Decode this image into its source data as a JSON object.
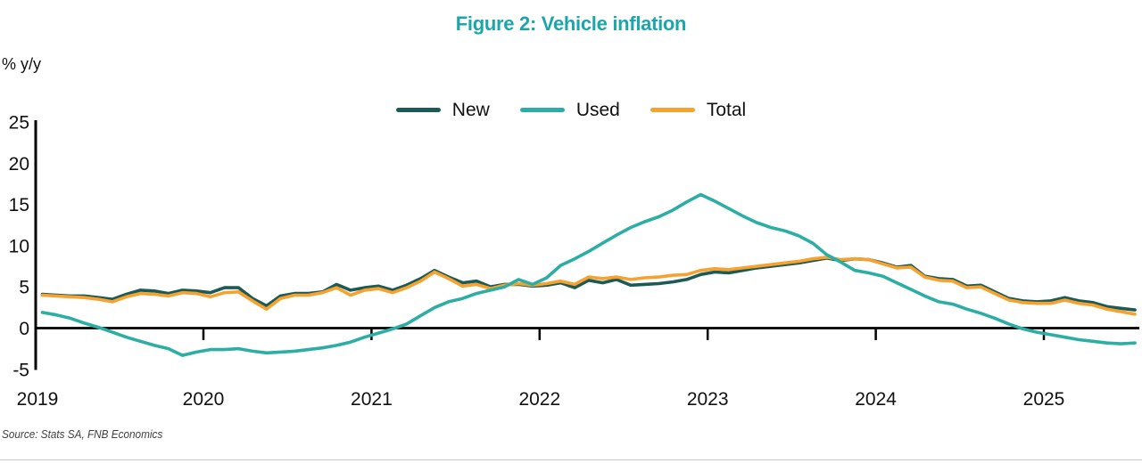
{
  "title": "Figure 2: Vehicle inflation",
  "y_axis_unit_label": "% y/y",
  "source_note": "Source: Stats SA, FNB Economics",
  "colors": {
    "title_teal": "#1ca6ab",
    "new_line": "#1c5b55",
    "used_line": "#2caea5",
    "total_line": "#f7a12f",
    "axis": "#000000",
    "tick_text": "#111111"
  },
  "legend": {
    "items": [
      {
        "label": "New",
        "color": "#1c5b55"
      },
      {
        "label": "Used",
        "color": "#2caea5"
      },
      {
        "label": "Total",
        "color": "#f7a12f"
      }
    ]
  },
  "chart_data": {
    "type": "line",
    "title": "Figure 2: Vehicle inflation",
    "xlabel": "",
    "ylabel": "% y/y",
    "ylim": [
      -5,
      25
    ],
    "yticks": [
      25,
      20,
      15,
      10,
      5,
      0,
      -5
    ],
    "year_tick_labels": [
      "2019",
      "2020",
      "2021",
      "2022",
      "2023",
      "2024",
      "2025"
    ],
    "x_monthly_start": "2019-01",
    "x_monthly_end": "2025-07",
    "grid": false,
    "legend_position": "top-center",
    "zero_baseline": true,
    "draw_order": [
      "New",
      "Total",
      "Used"
    ],
    "series": [
      {
        "name": "New",
        "color": "#1c5b55",
        "values": [
          4.1,
          4.0,
          3.9,
          3.9,
          3.7,
          3.5,
          4.1,
          4.6,
          4.5,
          4.2,
          4.6,
          4.5,
          4.3,
          4.9,
          4.9,
          3.6,
          2.7,
          3.9,
          4.2,
          4.2,
          4.4,
          5.3,
          4.6,
          4.9,
          5.1,
          4.6,
          5.2,
          6.0,
          7.0,
          6.2,
          5.5,
          5.7,
          5.0,
          5.3,
          5.3,
          5.1,
          5.2,
          5.5,
          4.9,
          5.8,
          5.5,
          5.9,
          5.2,
          5.3,
          5.4,
          5.6,
          5.9,
          6.5,
          6.8,
          6.7,
          7.0,
          7.3,
          7.5,
          7.7,
          7.9,
          8.2,
          8.5,
          8.2,
          8.4,
          8.3,
          7.9,
          7.4,
          7.6,
          6.3,
          6.0,
          5.9,
          5.1,
          5.2,
          4.4,
          3.6,
          3.3,
          3.2,
          3.3,
          3.7,
          3.3,
          3.1,
          2.6,
          2.4,
          2.2
        ]
      },
      {
        "name": "Used",
        "color": "#2caea5",
        "values": [
          1.9,
          1.6,
          1.2,
          0.6,
          0.1,
          -0.5,
          -1.1,
          -1.6,
          -2.1,
          -2.5,
          -3.3,
          -2.9,
          -2.6,
          -2.6,
          -2.5,
          -2.8,
          -3.0,
          -2.9,
          -2.8,
          -2.6,
          -2.4,
          -2.1,
          -1.7,
          -1.1,
          -0.6,
          -0.1,
          0.5,
          1.5,
          2.5,
          3.2,
          3.6,
          4.2,
          4.6,
          5.0,
          5.9,
          5.3,
          6.1,
          7.6,
          8.4,
          9.3,
          10.3,
          11.3,
          12.2,
          12.9,
          13.5,
          14.3,
          15.3,
          16.2,
          15.4,
          14.5,
          13.6,
          12.8,
          12.2,
          11.8,
          11.2,
          10.3,
          8.9,
          8.0,
          7.0,
          6.7,
          6.3,
          5.5,
          4.7,
          3.9,
          3.2,
          2.9,
          2.3,
          1.8,
          1.2,
          0.5,
          -0.1,
          -0.5,
          -0.8,
          -1.1,
          -1.4,
          -1.6,
          -1.8,
          -1.9,
          -1.8
        ]
      },
      {
        "name": "Total",
        "color": "#f7a12f",
        "values": [
          4.0,
          3.9,
          3.8,
          3.7,
          3.5,
          3.2,
          3.8,
          4.2,
          4.1,
          3.9,
          4.3,
          4.2,
          3.8,
          4.3,
          4.4,
          3.3,
          2.3,
          3.6,
          4.0,
          4.0,
          4.3,
          4.9,
          4.0,
          4.6,
          4.8,
          4.3,
          4.9,
          5.7,
          6.8,
          6.0,
          5.1,
          5.3,
          4.8,
          5.2,
          5.4,
          5.2,
          5.4,
          5.7,
          5.3,
          6.2,
          6.0,
          6.2,
          5.9,
          6.1,
          6.2,
          6.4,
          6.5,
          7.0,
          7.2,
          7.1,
          7.3,
          7.5,
          7.7,
          7.9,
          8.1,
          8.4,
          8.6,
          8.3,
          8.4,
          8.3,
          7.8,
          7.3,
          7.4,
          6.2,
          5.8,
          5.7,
          4.9,
          5.0,
          4.2,
          3.4,
          3.1,
          3.0,
          3.0,
          3.4,
          3.0,
          2.8,
          2.3,
          2.0,
          1.7
        ]
      }
    ]
  }
}
